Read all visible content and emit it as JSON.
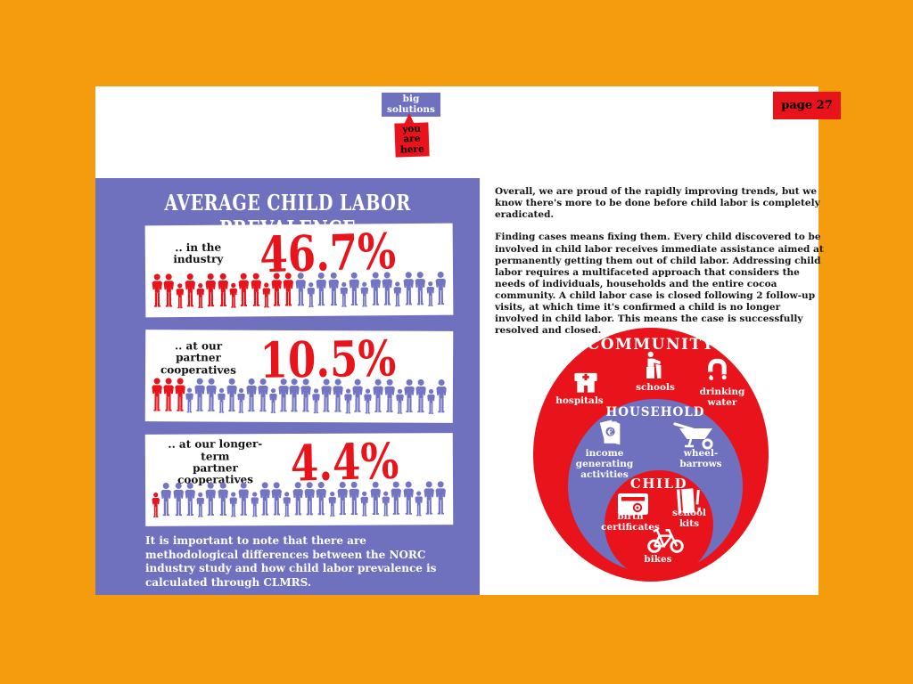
{
  "colors": {
    "orange": "#F49C0D",
    "purple": "#6F70BE",
    "red": "#E8131B",
    "figure_purple": "#7375C4"
  },
  "tags": {
    "section": "big\nsolutions",
    "marker": "you\nare\nhere",
    "page_number": "page 27"
  },
  "left_panel": {
    "title": "AVERAGE CHILD LABOR PREVALENCE",
    "stats": [
      {
        "label": ".. in the industry",
        "value": "46.7%",
        "figures_total": 27,
        "figures_red": 13,
        "pattern": "AACACAACAACAAACAACACAACAACA"
      },
      {
        "label": ".. at our partner\ncooperatives",
        "value": "10.5%",
        "figures_total": 28,
        "figures_red": 3,
        "pattern": "AAACAACACAACAAACAACACAACAACA"
      },
      {
        "label": ".. at our longer-term\npartner cooperatives",
        "value": "4.4%",
        "figures_total": 27,
        "figures_red": 1,
        "pattern": "CAAACAACACAACAAACAACACAACAA"
      }
    ],
    "footnote": "It is important to note that there are methodological differences between the NORC industry study and how child labor prevalence is calculated through CLMRS."
  },
  "right_column": {
    "paragraphs": [
      "Overall, we are proud of the rapidly improving trends, but we know there's more to be done before child labor is completely eradicated.",
      "Finding cases means fixing them. Every child discovered to be involved in child labor receives immediate assistance aimed at permanently getting them out of child labor. Addressing child labor requires a multifaceted approach that considers the needs of individuals, households and the entire cocoa community. A child labor case is closed following 2 follow-up visits, at which time it's confirmed a child is no longer involved in child labor. This means the case is successfully resolved and closed."
    ],
    "diagram": {
      "community": {
        "title": "COMMUNITY",
        "items": [
          {
            "icon": "hospital-icon",
            "label": "hospitals"
          },
          {
            "icon": "school-icon",
            "label": "schools"
          },
          {
            "icon": "drinking-water-icon",
            "label": "drinking\nwater"
          }
        ]
      },
      "household": {
        "title": "HOUSEHOLD",
        "items": [
          {
            "icon": "money-icon",
            "label": "income\ngenerating\nactivities"
          },
          {
            "icon": "wheelbarrow-icon",
            "label": "wheel-\nbarrows"
          }
        ]
      },
      "child": {
        "title": "CHILD",
        "items": [
          {
            "icon": "birth-certificate-icon",
            "label": "birth\ncertificates"
          },
          {
            "icon": "school-kit-icon",
            "label": "school\nkits"
          },
          {
            "icon": "bike-icon",
            "label": "bikes"
          }
        ]
      }
    }
  }
}
